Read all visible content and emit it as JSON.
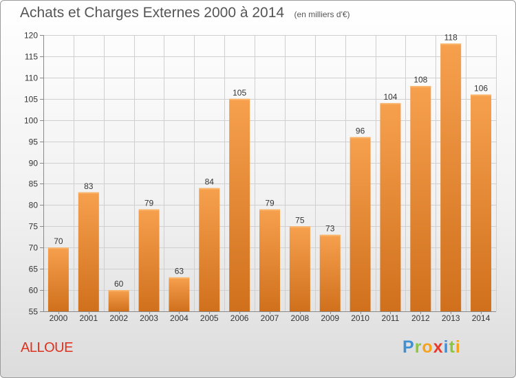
{
  "chart_data": {
    "type": "bar",
    "title": "Achats et Charges Externes 2000 à 2014",
    "unit": "(en milliers d'€)",
    "categories": [
      "2000",
      "2001",
      "2002",
      "2003",
      "2004",
      "2005",
      "2006",
      "2007",
      "2008",
      "2009",
      "2010",
      "2011",
      "2012",
      "2013",
      "2014"
    ],
    "values": [
      70,
      83,
      60,
      79,
      63,
      84,
      105,
      79,
      75,
      73,
      96,
      104,
      108,
      118,
      106
    ],
    "ylim": [
      55,
      120
    ],
    "yticks": [
      55,
      60,
      65,
      70,
      75,
      80,
      85,
      90,
      95,
      100,
      105,
      110,
      115,
      120
    ],
    "grid": true,
    "bar_color_top": "#f6a04e",
    "bar_color_bottom": "#d0701c"
  },
  "commune": "ALLOUE",
  "logo": {
    "letters": [
      "P",
      "r",
      "o",
      "x",
      "i",
      "t",
      "i"
    ],
    "colors": [
      "#3d8fd6",
      "#8cc63e",
      "#f7a21b",
      "#e8392b",
      "#3d8fd6",
      "#8cc63e",
      "#f7a21b"
    ]
  }
}
